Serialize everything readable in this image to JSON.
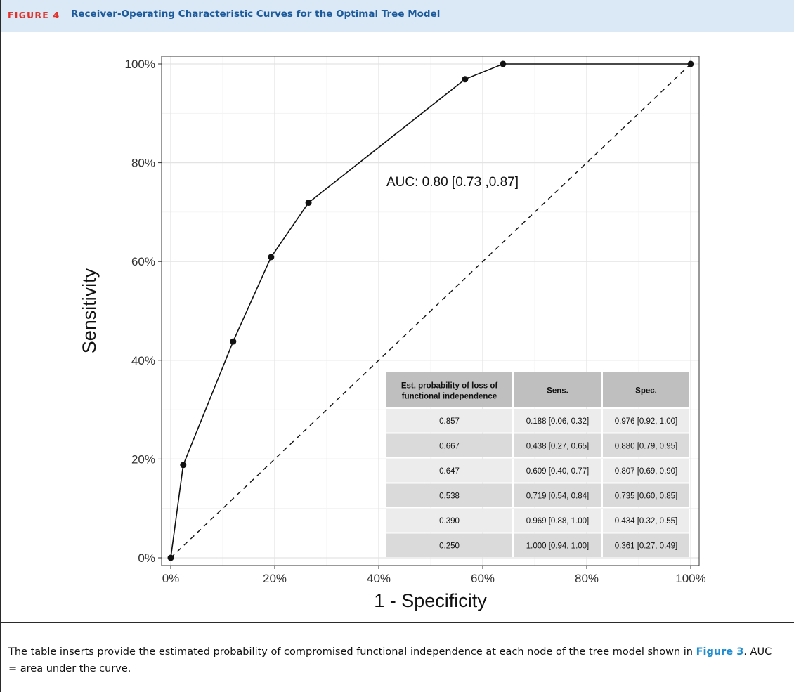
{
  "figure": {
    "label": "FIGURE 4",
    "title": "Receiver-Operating Characteristic Curves for the Optimal Tree Model"
  },
  "caption": {
    "text_before": "The table inserts provide the estimated probability of compromised functional independence at each node of the tree model shown in",
    "link_text": "Figure 3",
    "text_after": ". AUC = area under the curve."
  },
  "chart_data": {
    "type": "line",
    "xlabel": "1 - Specificity",
    "ylabel": "Sensitivity",
    "xlim": [
      0,
      1
    ],
    "ylim": [
      0,
      1
    ],
    "x_ticks": [
      "0%",
      "20%",
      "40%",
      "60%",
      "80%",
      "100%"
    ],
    "y_ticks": [
      "0%",
      "20%",
      "40%",
      "60%",
      "80%",
      "100%"
    ],
    "grid": true,
    "series": [
      {
        "x": [
          0,
          0.024,
          0.12,
          0.193,
          0.265,
          0.566,
          0.639,
          1.0
        ],
        "y": [
          0,
          0.188,
          0.438,
          0.609,
          0.719,
          0.969,
          1.0,
          1.0
        ]
      }
    ],
    "reference_line": {
      "from": [
        0,
        0
      ],
      "to": [
        1,
        1
      ],
      "style": "dashed"
    },
    "annotation": "AUC: 0.80 [0.73 ,0.87]",
    "table": {
      "headers": [
        "Est. probability of loss of functional independence",
        "Sens.",
        "Spec."
      ],
      "header_lines": [
        [
          "Est. probability of loss of",
          "functional independence"
        ],
        [
          "Sens."
        ],
        [
          "Spec."
        ]
      ],
      "rows": [
        [
          "0.857",
          "0.188 [0.06, 0.32]",
          "0.976 [0.92, 1.00]"
        ],
        [
          "0.667",
          "0.438 [0.27, 0.65]",
          "0.880 [0.79, 0.95]"
        ],
        [
          "0.647",
          "0.609 [0.40, 0.77]",
          "0.807 [0.69, 0.90]"
        ],
        [
          "0.538",
          "0.719 [0.54, 0.84]",
          "0.735 [0.60, 0.85]"
        ],
        [
          "0.390",
          "0.969 [0.88, 1.00]",
          "0.434 [0.32, 0.55]"
        ],
        [
          "0.250",
          "1.000 [0.94, 1.00]",
          "0.361 [0.27, 0.49]"
        ]
      ]
    }
  }
}
